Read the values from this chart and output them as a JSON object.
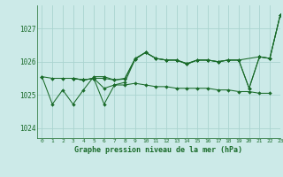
{
  "title": "Graphe pression niveau de la mer (hPa)",
  "background_color": "#cceae8",
  "grid_color": "#aad4d0",
  "line_color": "#1a6b2a",
  "xlim": [
    -0.5,
    23
  ],
  "ylim": [
    1023.7,
    1027.7
  ],
  "yticks": [
    1024,
    1025,
    1026,
    1027
  ],
  "xticks": [
    0,
    1,
    2,
    3,
    4,
    5,
    6,
    7,
    8,
    9,
    10,
    11,
    12,
    13,
    14,
    15,
    16,
    17,
    18,
    19,
    20,
    21,
    22,
    23
  ],
  "series": [
    [
      1025.55,
      1024.72,
      1025.15,
      1024.72,
      1025.15,
      1025.55,
      1025.55,
      1025.45,
      1025.5,
      1026.1,
      1026.28,
      1026.1,
      1026.05,
      1026.05,
      1025.95,
      1026.05,
      1026.05,
      1026.0,
      1026.05,
      1026.05,
      1025.2,
      1026.15,
      1026.1,
      1027.4
    ],
    [
      1025.55,
      1025.5,
      1025.5,
      1025.5,
      1025.45,
      1025.5,
      1025.2,
      1025.3,
      1025.3,
      1025.35,
      1025.3,
      1025.25,
      1025.25,
      1025.2,
      1025.2,
      1025.2,
      1025.2,
      1025.15,
      1025.15,
      1025.1,
      1025.1,
      1025.05,
      1025.05,
      null
    ],
    [
      null,
      null,
      null,
      1025.5,
      1025.45,
      1025.5,
      1025.5,
      1025.45,
      1025.48,
      1026.08,
      1026.28,
      1026.1,
      1026.05,
      1026.05,
      1025.93,
      1026.05,
      1026.05,
      1026.0,
      1026.05,
      1026.05,
      null,
      1026.15,
      1026.1,
      1027.4
    ],
    [
      null,
      null,
      null,
      1025.5,
      1025.45,
      1025.5,
      1024.72,
      1025.3,
      1025.38,
      1026.08,
      1026.28,
      1026.1,
      1026.05,
      1026.05,
      1025.93,
      1026.05,
      1026.05,
      1026.0,
      1026.05,
      1026.05,
      1025.2,
      1026.15,
      1026.1,
      1027.4
    ]
  ],
  "marker": "D",
  "markersize": 2.0,
  "linewidth": 0.75
}
